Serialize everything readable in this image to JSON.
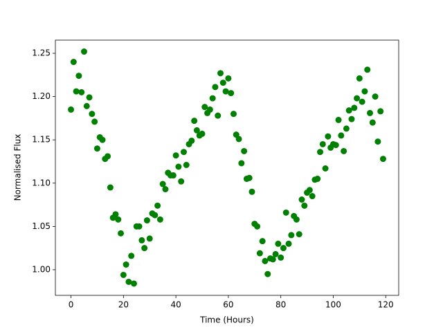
{
  "chart_data": {
    "type": "scatter",
    "xlabel": "Time (Hours)",
    "ylabel": "Normalised Flux",
    "color": "#008000",
    "x": [
      0,
      1,
      2,
      3,
      4,
      5,
      6,
      7,
      8,
      9,
      10,
      11,
      12,
      13,
      14,
      15,
      16,
      17,
      18,
      19,
      20,
      21,
      22,
      23,
      24,
      25,
      26,
      27,
      28,
      29,
      30,
      31,
      32,
      33,
      34,
      35,
      36,
      37,
      38,
      39,
      40,
      41,
      42,
      43,
      44,
      45,
      46,
      47,
      48,
      49,
      50,
      51,
      52,
      53,
      54,
      55,
      56,
      57,
      58,
      59,
      60,
      61,
      62,
      63,
      64,
      65,
      66,
      67,
      68,
      69,
      70,
      71,
      72,
      73,
      74,
      75,
      76,
      77,
      78,
      79,
      80,
      81,
      82,
      83,
      84,
      85,
      86,
      87,
      88,
      89,
      90,
      91,
      92,
      93,
      94,
      95,
      96,
      97,
      98,
      99,
      100,
      101,
      102,
      103,
      104,
      105,
      106,
      107,
      108,
      109,
      110,
      111,
      112,
      113,
      114,
      115,
      116,
      117,
      118,
      119
    ],
    "values": [
      1.185,
      1.24,
      1.206,
      1.224,
      1.205,
      1.252,
      1.189,
      1.199,
      1.18,
      1.171,
      1.14,
      1.153,
      1.15,
      1.128,
      1.131,
      1.095,
      1.06,
      1.064,
      1.058,
      1.042,
      0.994,
      1.006,
      0.986,
      1.016,
      0.984,
      1.05,
      1.05,
      1.034,
      1.025,
      1.057,
      1.036,
      1.065,
      1.063,
      1.074,
      1.058,
      1.099,
      1.093,
      1.112,
      1.109,
      1.109,
      1.132,
      1.119,
      1.102,
      1.136,
      1.121,
      1.145,
      1.149,
      1.172,
      1.161,
      1.155,
      1.157,
      1.188,
      1.181,
      1.185,
      1.198,
      1.211,
      1.178,
      1.227,
      1.216,
      1.206,
      1.221,
      1.204,
      1.18,
      1.156,
      1.151,
      1.123,
      1.137,
      1.105,
      1.106,
      1.09,
      1.053,
      1.05,
      1.019,
      1.033,
      1.01,
      0.995,
      1.013,
      1.012,
      1.018,
      1.03,
      1.014,
      1.025,
      1.066,
      1.03,
      1.04,
      1.062,
      1.058,
      1.041,
      1.081,
      1.074,
      1.089,
      1.092,
      1.085,
      1.104,
      1.105,
      1.136,
      1.145,
      1.117,
      1.154,
      1.141,
      1.145,
      1.144,
      1.173,
      1.155,
      1.137,
      1.163,
      1.184,
      1.174,
      1.187,
      1.198,
      1.221,
      1.194,
      1.206,
      1.231,
      1.181,
      1.17,
      1.2,
      1.148,
      1.183,
      1.128
    ],
    "xlim": [
      -5.95,
      124.95
    ],
    "xticks": [
      0,
      20,
      40,
      60,
      80,
      100,
      120
    ],
    "ylim": [
      0.9704,
      1.2652
    ],
    "yticks": [
      {
        "value": 1,
        "label": "1.00"
      },
      1.05,
      {
        "value": 1.1,
        "label": "1.10"
      },
      1.15,
      {
        "value": 1.2,
        "label": "1.20"
      },
      1.25
    ]
  }
}
